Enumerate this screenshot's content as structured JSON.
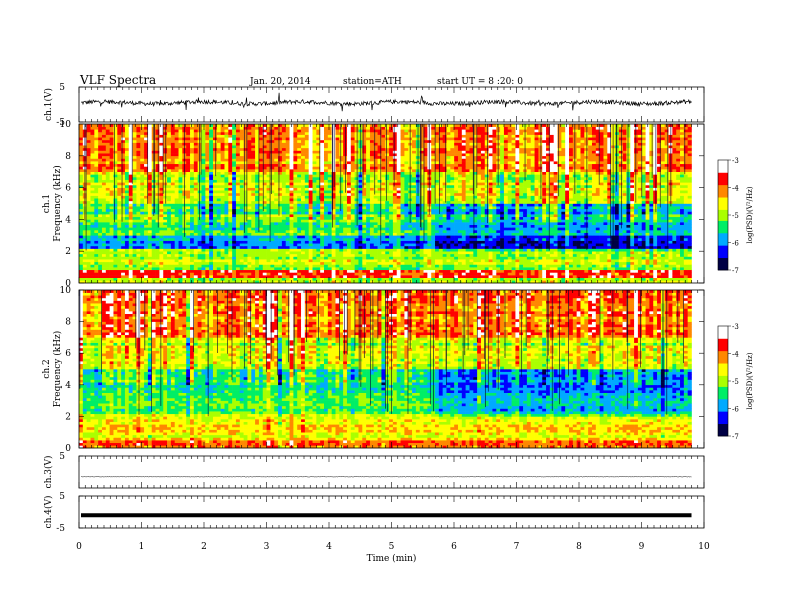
{
  "header": {
    "title": "VLF  Spectra",
    "date": "Jan. 20, 2014",
    "station": "station=ATH",
    "start": "start  UT =   8 :20: 0"
  },
  "chart_data": [
    {
      "panel": "ch1-waveform",
      "type": "line",
      "ylabel": "ch.1(V)",
      "ylim": [
        -5,
        5
      ],
      "yticks": [
        "5",
        "-5"
      ],
      "xlim": [
        0,
        10
      ],
      "baseline": 0.5,
      "series_color": "#000000"
    },
    {
      "panel": "ch1-spectrogram",
      "type": "heatmap",
      "ylabel_channel": "ch.1",
      "ylabel": "Frequency  (kHz)",
      "ylim": [
        0,
        10
      ],
      "yticks": [
        "0",
        "2",
        "4",
        "6",
        "8",
        "10"
      ],
      "xlim": [
        0,
        9.8
      ],
      "colorbar": {
        "label": "log(PSD)(V²/Hz)",
        "range": [
          -7,
          -3
        ],
        "ticks": [
          "-3",
          "-4",
          "-5",
          "-6",
          "-7"
        ],
        "colors": [
          "#000044",
          "#0000ff",
          "#00aaff",
          "#00ee66",
          "#aaff00",
          "#ffff00",
          "#ff8800",
          "#ff0000",
          "#ffffff"
        ]
      },
      "bands": [
        {
          "f": [
            0.0,
            0.4
          ],
          "level": -5.0
        },
        {
          "f": [
            0.4,
            0.8
          ],
          "level": -3.6
        },
        {
          "f": [
            0.8,
            2.2
          ],
          "level": -5.0
        },
        {
          "f": [
            2.2,
            3.0
          ],
          "level": -6.0
        },
        {
          "f": [
            3.0,
            5.0
          ],
          "level": -5.3
        },
        {
          "f": [
            5.0,
            7.0
          ],
          "level": -4.8
        },
        {
          "f": [
            7.0,
            10.0
          ],
          "level": -4.2
        }
      ]
    },
    {
      "panel": "ch2-spectrogram",
      "type": "heatmap",
      "ylabel_channel": "ch.2",
      "ylabel": "Frequency  (kHz)",
      "ylim": [
        0,
        10
      ],
      "yticks": [
        "0",
        "2",
        "4",
        "6",
        "8",
        "10"
      ],
      "xlim": [
        0,
        9.8
      ],
      "colorbar": {
        "label": "log(PSD)(V²/Hz)",
        "range": [
          -7,
          -3
        ],
        "ticks": [
          "-3",
          "-4",
          "-5",
          "-6",
          "-7"
        ]
      },
      "bands": [
        {
          "f": [
            0.0,
            0.5
          ],
          "level": -4.0
        },
        {
          "f": [
            0.5,
            2.2
          ],
          "level": -4.6
        },
        {
          "f": [
            2.2,
            3.5
          ],
          "level": -5.2
        },
        {
          "f": [
            3.5,
            5.0
          ],
          "level": -5.4
        },
        {
          "f": [
            5.0,
            7.0
          ],
          "level": -4.8
        },
        {
          "f": [
            7.0,
            10.0
          ],
          "level": -4.0
        }
      ]
    },
    {
      "panel": "ch3-waveform",
      "type": "line",
      "ylabel": "ch.3(V)",
      "ylim": [
        -5,
        5
      ],
      "yticks": [
        "5"
      ],
      "xlim": [
        0,
        10
      ],
      "baseline": -1.5,
      "series_color": "#000000"
    },
    {
      "panel": "ch4-waveform",
      "type": "line",
      "ylabel": "ch.4(V)",
      "ylim": [
        -5,
        5
      ],
      "yticks": [
        "5",
        "-5"
      ],
      "xlim": [
        0,
        10
      ],
      "baseline": -1.0,
      "series_color": "#000000",
      "thick": true
    }
  ],
  "xaxis": {
    "label": "Time  (min)",
    "ticks": [
      "0",
      "1",
      "2",
      "3",
      "4",
      "5",
      "6",
      "7",
      "8",
      "9",
      "10"
    ],
    "range": [
      0,
      10
    ]
  }
}
